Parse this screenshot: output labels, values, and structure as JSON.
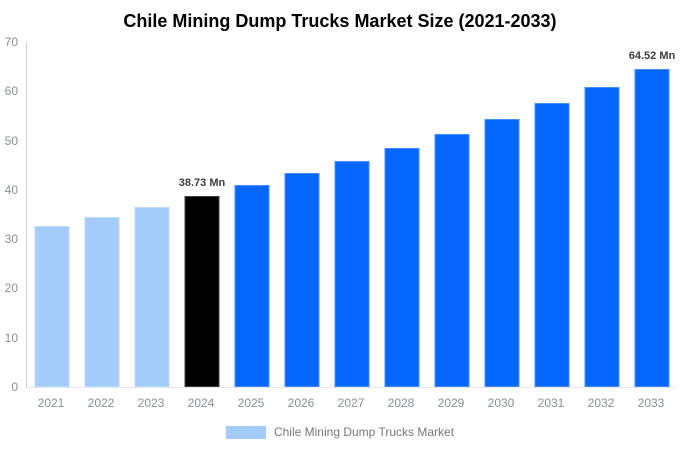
{
  "title": "Chile Mining Dump Trucks Market Size (2021-2033)",
  "legend": {
    "label": "Chile Mining Dump Trucks Market"
  },
  "colors": {
    "background": "#FFFFFF",
    "title_text": "#000000",
    "historical_bar": "#A3CCFB",
    "base_year_bar": "#000000",
    "forecast_bar": "#0667FD",
    "axis_text": "#8A8F94",
    "axis_line": "#CFD2D6",
    "baseline": "#E4E6E9",
    "data_label_text": "#3D3D3D",
    "legend_text": "#75797E"
  },
  "chart_data": {
    "type": "bar",
    "title": "Chile Mining Dump Trucks Market Size (2021-2033)",
    "unit": "Mn",
    "categories": [
      "2021",
      "2022",
      "2023",
      "2024",
      "2025",
      "2026",
      "2027",
      "2028",
      "2029",
      "2030",
      "2031",
      "2032",
      "2033"
    ],
    "values": [
      32.67,
      34.58,
      36.6,
      38.73,
      40.99,
      43.38,
      45.91,
      48.59,
      51.43,
      54.43,
      57.6,
      60.97,
      64.52
    ],
    "bar_colors": [
      "#A3CCFB",
      "#A3CCFB",
      "#A3CCFB",
      "#000000",
      "#0667FD",
      "#0667FD",
      "#0667FD",
      "#0667FD",
      "#0667FD",
      "#0667FD",
      "#0667FD",
      "#0667FD",
      "#0667FD"
    ],
    "data_labels": {
      "2024": "38.73 Mn",
      "2033": "64.52 Mn"
    },
    "xlabel": "",
    "ylabel": "",
    "ylim": [
      0,
      70
    ],
    "yticks": [
      0,
      10,
      20,
      30,
      40,
      50,
      60,
      70
    ],
    "grid": false,
    "legend_position": "bottom",
    "legend_entries": [
      "Chile Mining Dump Trucks Market"
    ]
  }
}
